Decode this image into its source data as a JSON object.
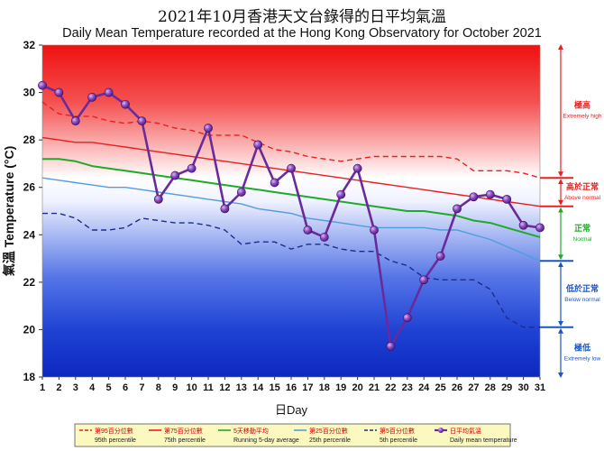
{
  "chart_data": {
    "type": "line",
    "title": "2021年10月香港天文台錄得的日平均氣溫",
    "subtitle": "Daily Mean Temperature recorded at the Hong Kong Observatory for October 2021",
    "xlabel": "日Day",
    "ylabel": "氣溫 Temperature (°C)",
    "ylim": [
      18,
      32
    ],
    "x": [
      1,
      2,
      3,
      4,
      5,
      6,
      7,
      8,
      9,
      10,
      11,
      12,
      13,
      14,
      15,
      16,
      17,
      18,
      19,
      20,
      21,
      22,
      23,
      24,
      25,
      26,
      27,
      28,
      29,
      30,
      31
    ],
    "yticks": [
      18,
      20,
      22,
      24,
      26,
      28,
      30,
      32
    ],
    "series": [
      {
        "key": "p95",
        "name": "第95百分位數 95th percentile",
        "color": "#e8201f",
        "dash": "6,4",
        "values": [
          29.6,
          29.1,
          29.0,
          29.0,
          28.8,
          28.7,
          28.8,
          28.7,
          28.5,
          28.4,
          28.2,
          28.2,
          28.2,
          27.9,
          27.6,
          27.5,
          27.3,
          27.2,
          27.1,
          27.2,
          27.3,
          27.3,
          27.3,
          27.3,
          27.3,
          27.2,
          26.7,
          26.7,
          26.7,
          26.6,
          26.4
        ]
      },
      {
        "key": "p75",
        "name": "第75百分位數 75th percentile",
        "color": "#e8201f",
        "dash": "",
        "values": [
          28.1,
          28.0,
          27.9,
          27.9,
          27.8,
          27.7,
          27.6,
          27.5,
          27.4,
          27.3,
          27.2,
          27.1,
          27.0,
          26.9,
          26.8,
          26.7,
          26.6,
          26.5,
          26.4,
          26.3,
          26.2,
          26.1,
          26.0,
          25.9,
          25.8,
          25.7,
          25.6,
          25.5,
          25.4,
          25.3,
          25.2
        ]
      },
      {
        "key": "avg",
        "name": "5天移動平均 Running 5-day average",
        "color": "#1faa2a",
        "dash": "",
        "values": [
          27.2,
          27.2,
          27.1,
          26.9,
          26.8,
          26.7,
          26.6,
          26.5,
          26.4,
          26.3,
          26.2,
          26.1,
          26.0,
          25.9,
          25.8,
          25.7,
          25.6,
          25.5,
          25.4,
          25.3,
          25.2,
          25.1,
          25.0,
          25.0,
          24.9,
          24.8,
          24.6,
          24.5,
          24.3,
          24.1,
          23.9
        ]
      },
      {
        "key": "p25",
        "name": "第25百分位數 25th percentile",
        "color": "#4f9fdc",
        "dash": "",
        "values": [
          26.4,
          26.3,
          26.2,
          26.1,
          26.0,
          26.0,
          25.9,
          25.8,
          25.7,
          25.6,
          25.5,
          25.4,
          25.3,
          25.1,
          25.0,
          24.9,
          24.7,
          24.6,
          24.5,
          24.4,
          24.3,
          24.3,
          24.3,
          24.3,
          24.2,
          24.2,
          24.0,
          23.8,
          23.5,
          23.2,
          22.9
        ]
      },
      {
        "key": "p5",
        "name": "第5百分位數 5th percentile",
        "color": "#1c2c8c",
        "dash": "6,4",
        "values": [
          24.9,
          24.9,
          24.7,
          24.2,
          24.2,
          24.3,
          24.7,
          24.6,
          24.5,
          24.5,
          24.4,
          24.2,
          23.6,
          23.7,
          23.7,
          23.4,
          23.6,
          23.6,
          23.4,
          23.3,
          23.3,
          22.9,
          22.7,
          22.2,
          22.1,
          22.1,
          22.1,
          21.7,
          20.5,
          20.1,
          20.1
        ]
      },
      {
        "key": "daily",
        "name": "日平均氣溫 Daily mean temperature",
        "color": "#6a2a9c",
        "dash": "",
        "values": [
          30.3,
          30.0,
          28.8,
          29.8,
          30.0,
          29.5,
          28.8,
          25.5,
          26.5,
          26.8,
          28.5,
          25.1,
          25.8,
          27.8,
          26.2,
          26.8,
          24.2,
          23.9,
          25.7,
          26.8,
          24.2,
          19.3,
          20.5,
          22.1,
          23.1,
          25.1,
          25.6,
          25.7,
          25.5,
          24.4,
          24.3
        ]
      }
    ],
    "legend_position": "bottom",
    "annotations": [
      {
        "zh": "極高",
        "en": "Extremely high"
      },
      {
        "zh": "高於正常",
        "en": "Above normal"
      },
      {
        "zh": "正常",
        "en": "Normal"
      },
      {
        "zh": "低於正常",
        "en": "Below normal"
      },
      {
        "zh": "極低",
        "en": "Extremely low"
      }
    ],
    "grid": false
  }
}
